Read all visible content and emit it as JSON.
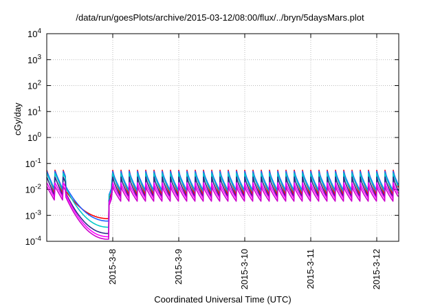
{
  "chart_data": {
    "type": "line",
    "title": "/data/run/goesPlots/archive/2015-03-12/08:00/flux/../bryn/5daysMars.plot",
    "xlabel": "Coordinated Universal Time (UTC)",
    "ylabel": "cGy/day",
    "yscale": "log",
    "ylim": [
      0.0001,
      10000
    ],
    "xlim": [
      "2015-03-07 00:00",
      "2015-03-12 08:00"
    ],
    "grid": true,
    "x_ticks": [
      "2015-3-8",
      "2015-3-9",
      "2015-3-10",
      "2015-3-11",
      "2015-3-12"
    ],
    "y_ticks": [
      {
        "base": "10",
        "exp": "-4"
      },
      {
        "base": "10",
        "exp": "-3"
      },
      {
        "base": "10",
        "exp": "-2"
      },
      {
        "base": "10",
        "exp": "-1"
      },
      {
        "base": "10",
        "exp": "0"
      },
      {
        "base": "10",
        "exp": "1"
      },
      {
        "base": "10",
        "exp": "2"
      },
      {
        "base": "10",
        "exp": "3"
      },
      {
        "base": "10",
        "exp": "4"
      }
    ],
    "series": [
      {
        "color": "#ff0000",
        "peak": 0.055,
        "trough": 0.006,
        "dip_min": 0.00075
      },
      {
        "color": "#1f5fff",
        "peak": 0.05,
        "trough": 0.009,
        "dip_min": 0.0006
      },
      {
        "color": "#00c8c8",
        "peak": 0.042,
        "trough": 0.008,
        "dip_min": 0.00035
      },
      {
        "color": "#2a2a88",
        "peak": 0.03,
        "trough": 0.005,
        "dip_min": 0.0002
      },
      {
        "color": "#ff00ff",
        "peak": 0.018,
        "trough": 0.0045,
        "dip_min": 0.00015
      },
      {
        "color": "#cc00cc",
        "peak": 0.013,
        "trough": 0.0035,
        "dip_min": 0.00012
      }
    ],
    "cycle_hours": 3,
    "dip_start": "2015-03-07 07:00",
    "dip_end": "2015-03-07 22:30"
  }
}
